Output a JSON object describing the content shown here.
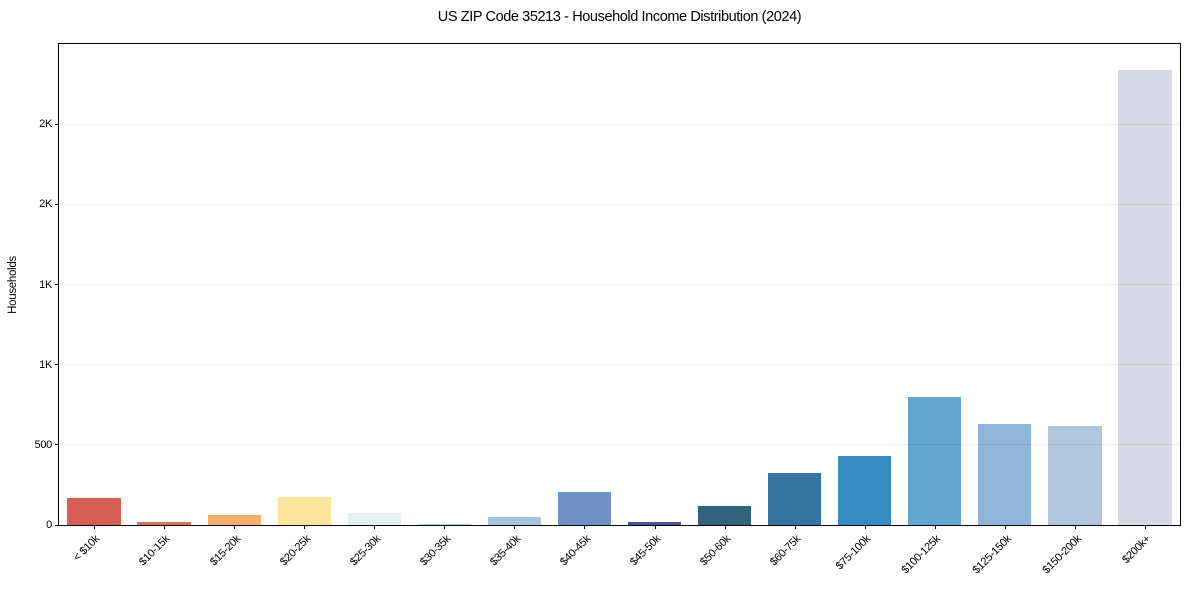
{
  "chart_data": {
    "type": "bar",
    "title": "US ZIP Code 35213 - Household Income Distribution (2024)",
    "xlabel": "",
    "ylabel": "Households",
    "ylim": [
      0,
      3000
    ],
    "grid": true,
    "legend": false,
    "yticks": [
      {
        "value": 0,
        "label": "0"
      },
      {
        "value": 500,
        "label": "500"
      },
      {
        "value": 1000,
        "label": "1K"
      },
      {
        "value": 1500,
        "label": "1K"
      },
      {
        "value": 2000,
        "label": "2K"
      },
      {
        "value": 2500,
        "label": "2K"
      }
    ],
    "categories": [
      "< $10k",
      "$10-15k",
      "$15-20k",
      "$20-25k",
      "$25-30k",
      "$30-35k",
      "$35-40k",
      "$40-45k",
      "$45-50k",
      "$50-60k",
      "$60-75k",
      "$75-100k",
      "$100-125k",
      "$125-150k",
      "$150-200k",
      "$200k+"
    ],
    "values": [
      170,
      17,
      60,
      173,
      72,
      8,
      48,
      207,
      21,
      116,
      322,
      430,
      800,
      628,
      618,
      2836
    ],
    "bar_colors": [
      "#d65f54",
      "#d5755a",
      "#f6ad6a",
      "#fbe49c",
      "#e3f0f1",
      "#b7d3cf",
      "#a2c6e2",
      "#6e92c6",
      "#50529d",
      "#33627f",
      "#34739e",
      "#368cc0",
      "#60a6ce",
      "#8fb5d8",
      "#b2c5de",
      "#d8d9e6"
    ],
    "colors": {
      "axis": "#000000",
      "text": "#000000",
      "background": "#ffffff",
      "gridline": "#ececec"
    }
  }
}
